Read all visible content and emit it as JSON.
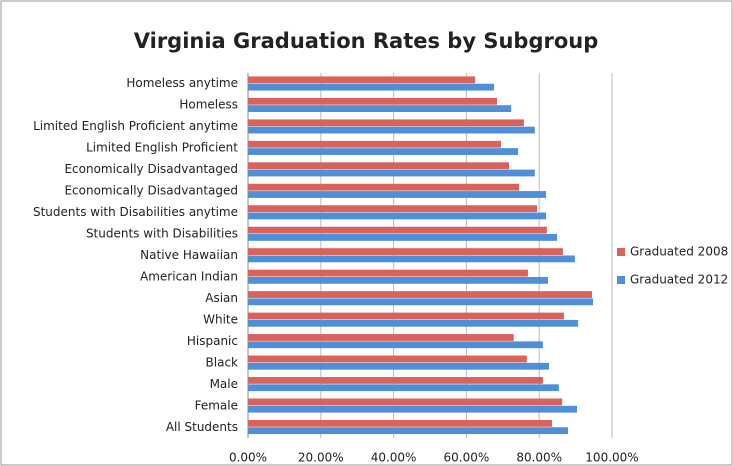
{
  "chart_data": {
    "type": "hbar",
    "title": "Virginia Graduation Rates by Subgroup",
    "categories": [
      "Homeless anytime",
      "Homeless",
      "Limited English Proficient anytime",
      "Limited English Proficient",
      "Economically Disadvantaged",
      "Economically Disadvantaged",
      "Students with Disabilities anytime",
      "Students with Disabilities",
      "Native Hawaiian",
      "American Indian",
      "Asian",
      "White",
      "Hispanic",
      "Black",
      "Male",
      "Female",
      "All Students"
    ],
    "series": [
      {
        "name": "Graduated 2008",
        "color": "#d9625b",
        "values": [
          62.4,
          68.4,
          75.8,
          69.5,
          71.7,
          74.5,
          79.4,
          82.1,
          86.5,
          76.9,
          94.5,
          86.8,
          73.0,
          76.6,
          81.0,
          86.3,
          83.5
        ]
      },
      {
        "name": "Graduated 2012",
        "color": "#4f8fd8",
        "values": [
          67.6,
          72.3,
          78.8,
          74.2,
          78.8,
          81.9,
          81.9,
          84.9,
          89.8,
          82.4,
          94.8,
          90.7,
          81.0,
          82.7,
          85.4,
          90.4,
          87.9
        ]
      }
    ],
    "xlim": [
      0,
      100
    ],
    "xticks": [
      {
        "value": 0,
        "label": "0.00%"
      },
      {
        "value": 20,
        "label": "20.00%"
      },
      {
        "value": 40,
        "label": "40.00%"
      },
      {
        "value": 60,
        "label": "60.00%"
      },
      {
        "value": 80,
        "label": "80.00%"
      },
      {
        "value": 100,
        "label": "100.00%"
      }
    ],
    "grid": true,
    "legend": "right"
  }
}
